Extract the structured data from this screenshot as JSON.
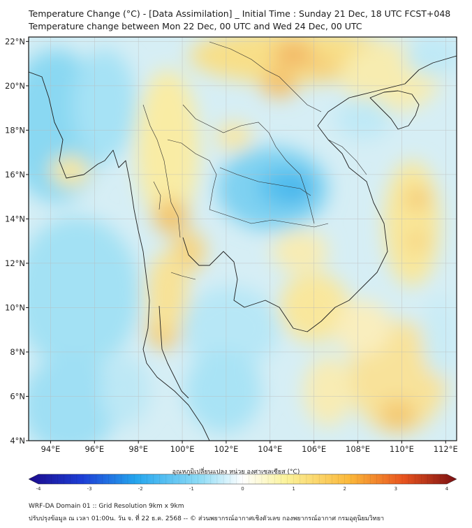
{
  "title_line1": "Temperature Change (°C) - [Data Assimilation] _ Initial Time : Sunday 21 Dec, 18 UTC FCST+048",
  "title_line2": "Temperature change between Mon 22 Dec, 00 UTC and Wed 24 Dec, 00 UTC",
  "map": {
    "lon_range": [
      93,
      112.5
    ],
    "lat_range": [
      4,
      22.2
    ],
    "lon_ticks": [
      "94°E",
      "96°E",
      "98°E",
      "100°E",
      "102°E",
      "104°E",
      "106°E",
      "108°E",
      "110°E",
      "112°E"
    ],
    "lat_ticks": [
      "22°N",
      "20°N",
      "18°N",
      "16°N",
      "14°N",
      "12°N",
      "10°N",
      "8°N",
      "6°N",
      "4°N"
    ]
  },
  "colorbar": {
    "label": "อุณหภูมิเปลี่ยนแปลง หน่วย องศาเซลเซียส (°C)",
    "ticks": [
      "-4",
      "-3",
      "-2",
      "-1",
      "0",
      "1",
      "2",
      "3",
      "4"
    ],
    "min": -4,
    "max": 4,
    "colors": [
      "#1b0a8c",
      "#1d3ed6",
      "#25a6ee",
      "#8fdcf6",
      "#ffffff",
      "#fbf39c",
      "#fbb83a",
      "#e9541f",
      "#7a0f12"
    ]
  },
  "footer_line1": "WRF-DA Domain 01 :: Grid Resolution 9km x 9km",
  "footer_line2": "ปรับปรุงข้อมูล ณ เวลา 01:00น. วัน จ. ที่ 22 ธ.ค. 2568 -- © ส่วนพยากรณ์อากาศเชิงตัวเลข กองพยากรณ์อากาศ กรมอุตุนิยมวิทยา"
}
